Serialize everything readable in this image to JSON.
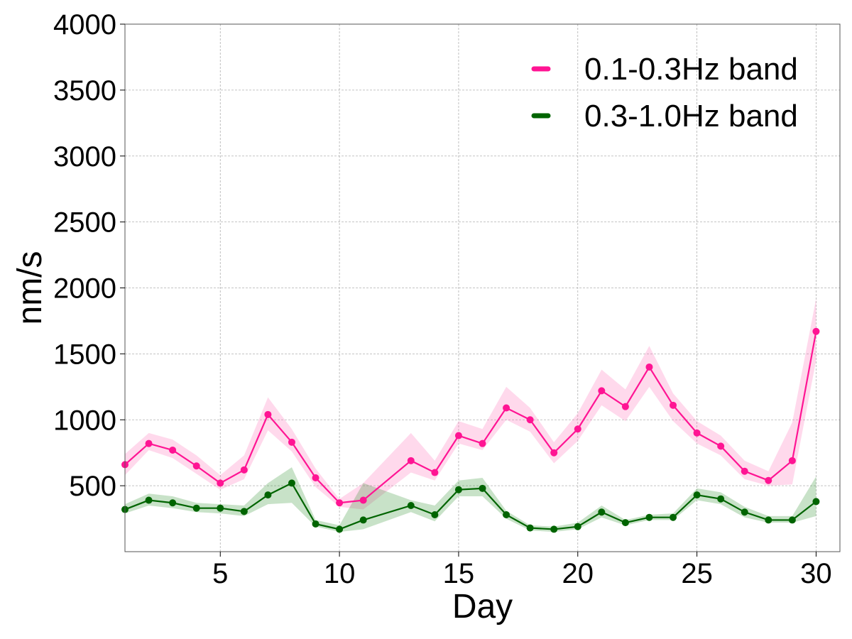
{
  "chart_data": {
    "type": "line",
    "xlabel": "Day",
    "ylabel": "nm/s",
    "xlim": [
      1,
      31
    ],
    "ylim": [
      0,
      4000
    ],
    "x_ticks": [
      5,
      10,
      15,
      20,
      25,
      30
    ],
    "y_ticks": [
      500,
      1000,
      1500,
      2000,
      2500,
      3000,
      3500,
      4000
    ],
    "grid": true,
    "legend_position": "top-right",
    "series": [
      {
        "name": "0.1-0.3Hz band",
        "color": "#ff1493",
        "band_color": "#ff69b4",
        "x": [
          1,
          2,
          3,
          4,
          5,
          6,
          7,
          8,
          9,
          10,
          11,
          13,
          14,
          15,
          16,
          17,
          18,
          19,
          20,
          21,
          22,
          23,
          24,
          25,
          26,
          27,
          28,
          29,
          30
        ],
        "y": [
          660,
          820,
          770,
          650,
          520,
          620,
          1040,
          830,
          560,
          370,
          390,
          690,
          600,
          880,
          820,
          1090,
          1000,
          750,
          930,
          1220,
          1100,
          1400,
          1110,
          900,
          800,
          610,
          540,
          690,
          1670
        ],
        "lower": [
          580,
          770,
          710,
          590,
          470,
          550,
          920,
          760,
          490,
          340,
          320,
          600,
          540,
          820,
          770,
          1000,
          910,
          670,
          840,
          1110,
          990,
          1250,
          990,
          820,
          730,
          550,
          500,
          510,
          1450
        ],
        "upper": [
          740,
          900,
          850,
          730,
          580,
          730,
          1170,
          930,
          630,
          400,
          520,
          900,
          690,
          990,
          930,
          1250,
          1090,
          830,
          1050,
          1380,
          1230,
          1560,
          1200,
          990,
          880,
          690,
          610,
          980,
          1920
        ]
      },
      {
        "name": "0.3-1.0Hz band",
        "color": "#006400",
        "band_color": "#228b22",
        "x": [
          1,
          2,
          3,
          4,
          5,
          6,
          7,
          8,
          9,
          10,
          11,
          13,
          14,
          15,
          16,
          17,
          18,
          19,
          20,
          21,
          22,
          23,
          24,
          25,
          26,
          27,
          28,
          29,
          30
        ],
        "y": [
          320,
          390,
          370,
          330,
          330,
          305,
          430,
          520,
          210,
          170,
          240,
          350,
          280,
          470,
          480,
          280,
          180,
          170,
          190,
          300,
          220,
          260,
          260,
          430,
          400,
          300,
          240,
          240,
          380
        ],
        "lower": [
          290,
          350,
          330,
          300,
          290,
          270,
          360,
          370,
          190,
          150,
          170,
          300,
          230,
          420,
          420,
          250,
          160,
          150,
          170,
          260,
          200,
          240,
          240,
          390,
          360,
          260,
          220,
          220,
          270
        ],
        "upper": [
          360,
          440,
          420,
          370,
          360,
          350,
          520,
          640,
          240,
          200,
          520,
          390,
          350,
          540,
          560,
          310,
          200,
          190,
          220,
          350,
          240,
          280,
          290,
          480,
          450,
          340,
          270,
          270,
          570
        ]
      }
    ]
  }
}
